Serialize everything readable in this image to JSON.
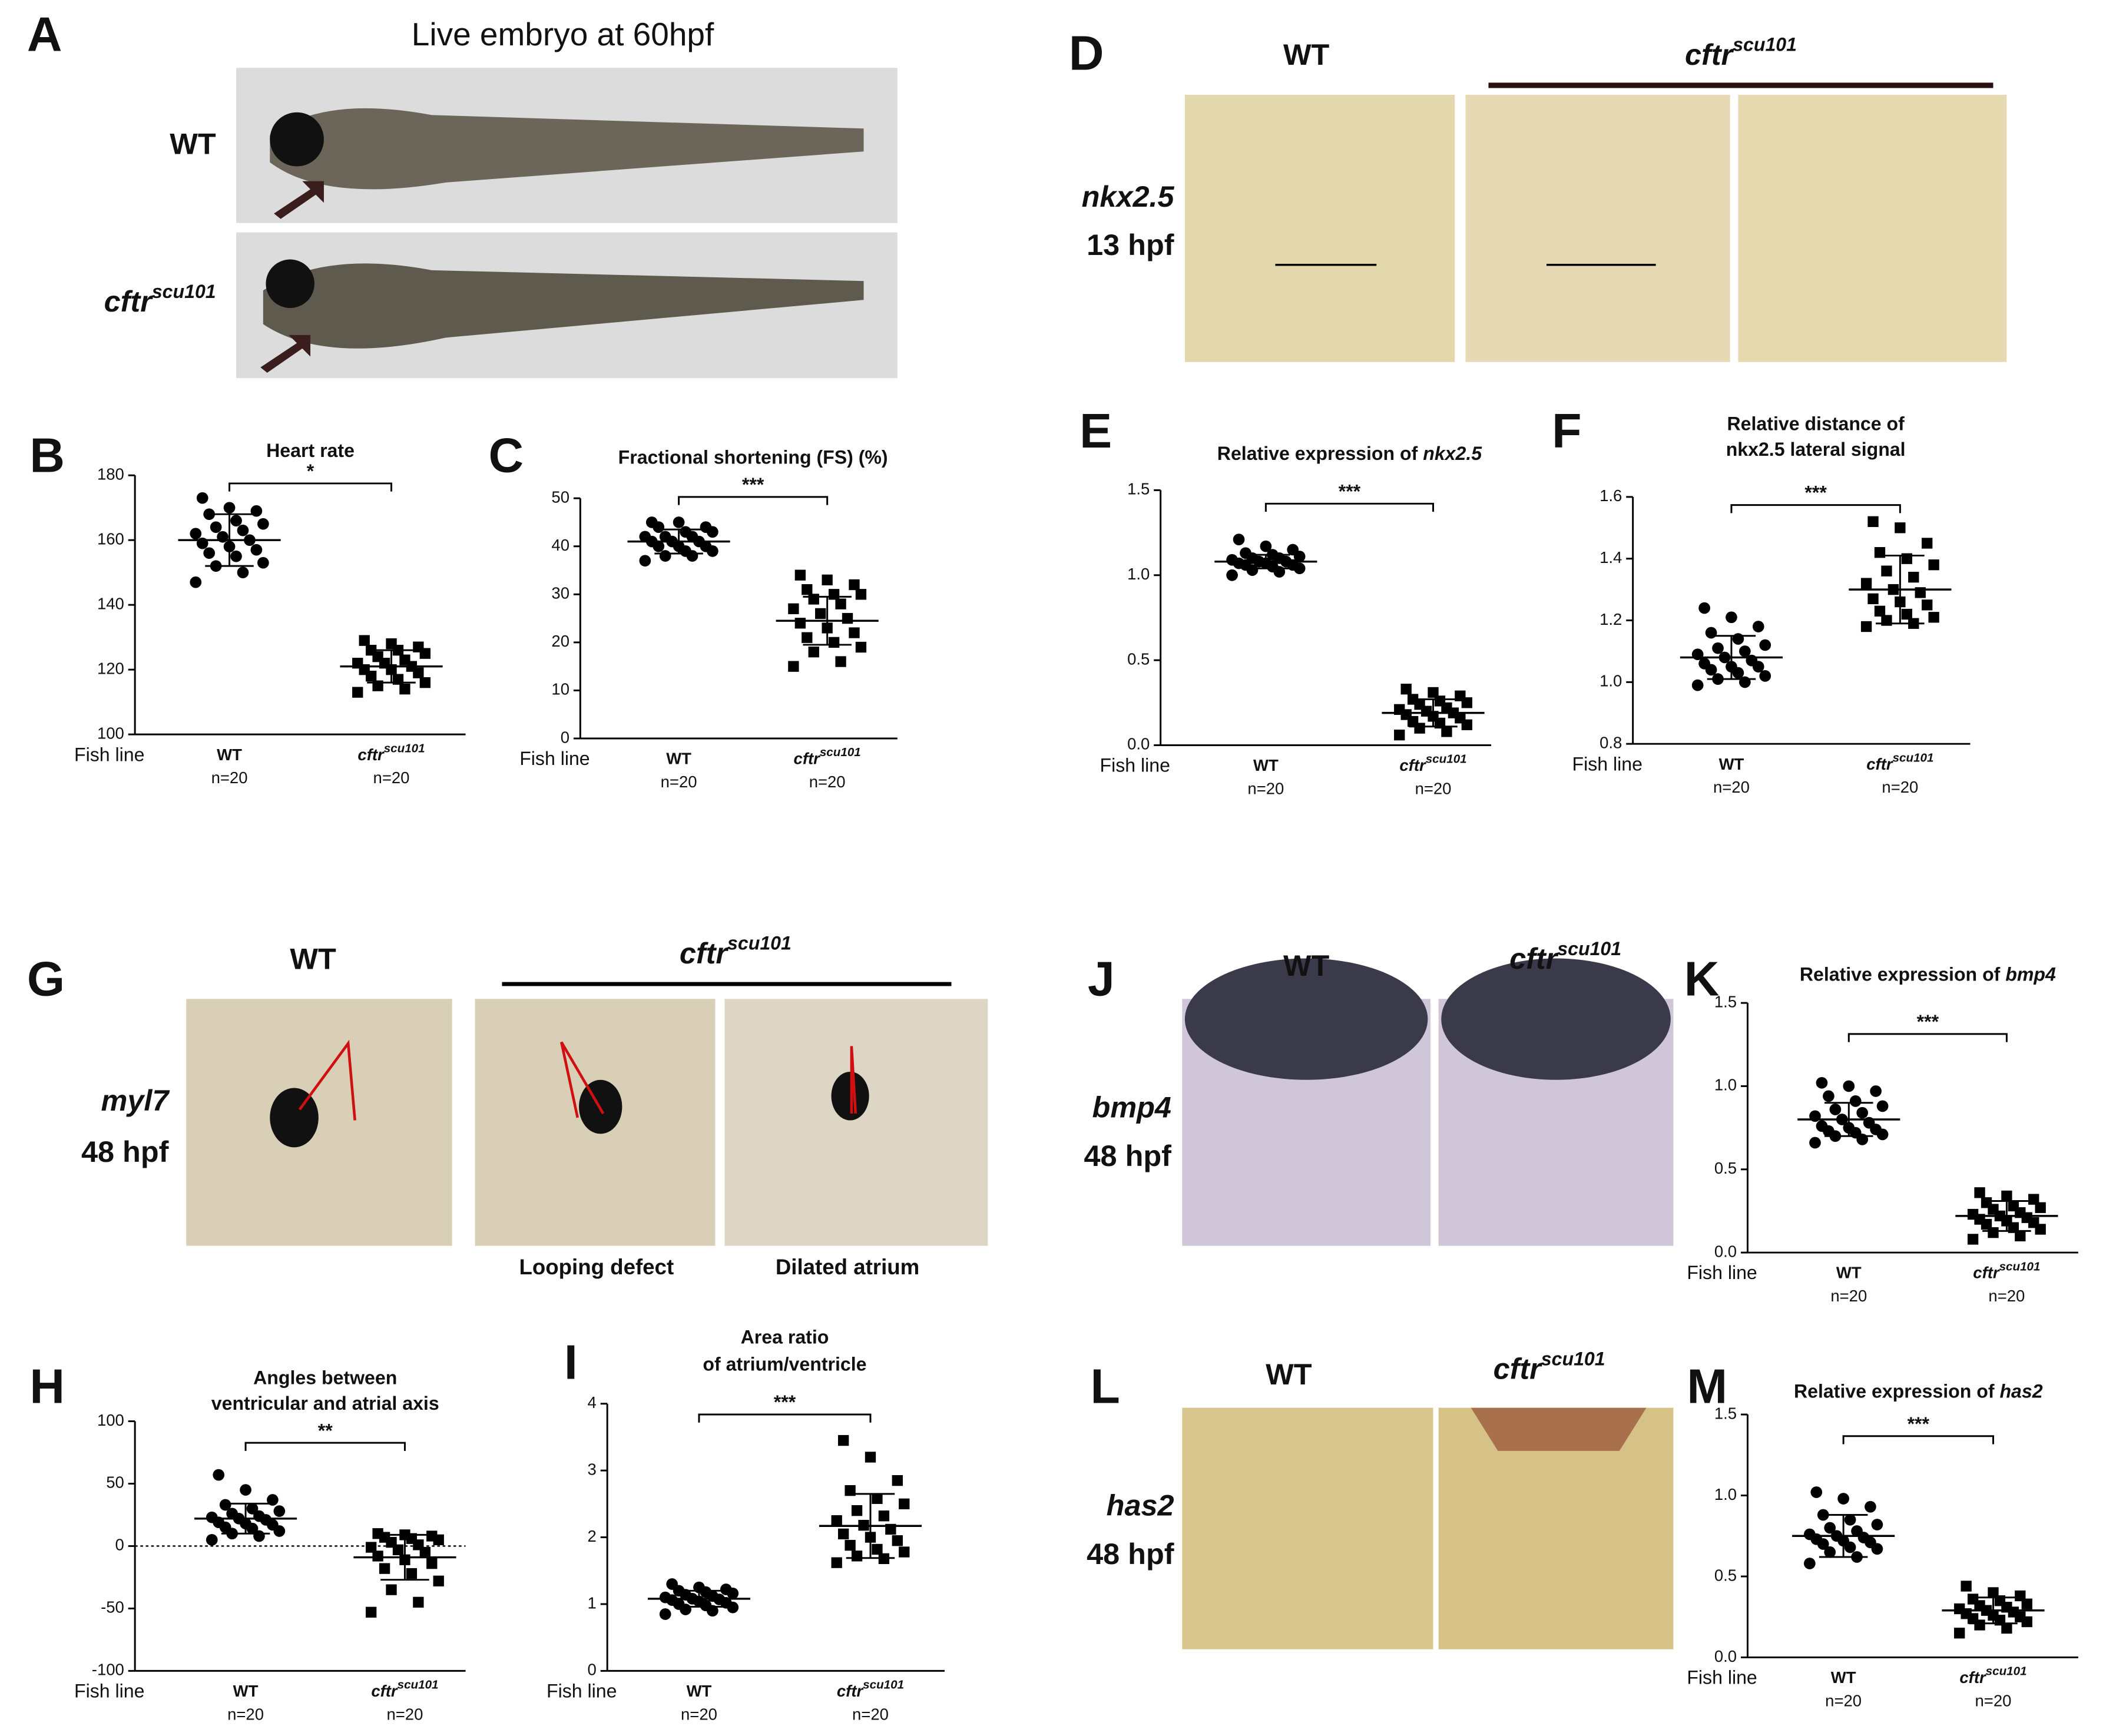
{
  "panel_letters": [
    "A",
    "B",
    "C",
    "D",
    "E",
    "F",
    "G",
    "H",
    "I",
    "J",
    "K",
    "L",
    "M"
  ],
  "panel_A": {
    "title": "Live embryo at 60hpf",
    "rows": [
      {
        "text": "WT"
      },
      {
        "text": "cftr",
        "sup": "scu101"
      }
    ]
  },
  "panel_D": {
    "columns": [
      {
        "text": "WT"
      },
      {
        "text": "cftr",
        "sup": "scu101"
      }
    ],
    "gene": "nkx2.5",
    "stage": "13 hpf"
  },
  "panel_G": {
    "columns": [
      {
        "text": "WT"
      },
      {
        "text": "cftr",
        "sup": "scu101"
      }
    ],
    "gene": "myl7",
    "stage": "48 hpf",
    "captions": [
      "Looping defect",
      "Dilated atrium"
    ]
  },
  "panel_J": {
    "columns": [
      {
        "text": "WT"
      },
      {
        "text": "cftr",
        "sup": "scu101"
      }
    ],
    "gene": "bmp4",
    "stage": "48 hpf"
  },
  "panel_L": {
    "columns": [
      {
        "text": "WT"
      },
      {
        "text": "cftr",
        "sup": "scu101"
      }
    ],
    "gene": "has2",
    "stage": "48 hpf"
  },
  "chart_data": [
    {
      "type": "dotplot",
      "title": "Heart rate",
      "x_label": "Fish line",
      "categories": [
        {
          "text": "WT"
        },
        {
          "text": "cftr",
          "sup": "scu101"
        }
      ],
      "n_labels": [
        "n=20",
        "n=20"
      ],
      "significance": "*",
      "ylim": [
        100,
        180
      ],
      "yticks": [
        100,
        120,
        140,
        160,
        180
      ],
      "groups": [
        {
          "marker": "circle",
          "mean": 160,
          "sd": 8,
          "values": [
            147,
            150,
            152,
            153,
            155,
            156,
            157,
            158,
            159,
            160,
            161,
            162,
            163,
            164,
            165,
            166,
            168,
            169,
            170,
            173
          ]
        },
        {
          "marker": "square",
          "mean": 121,
          "sd": 5,
          "values": [
            113,
            114,
            115,
            116,
            117,
            118,
            119,
            120,
            120,
            121,
            122,
            122,
            123,
            124,
            125,
            126,
            126,
            127,
            128,
            129
          ]
        }
      ]
    },
    {
      "type": "dotplot",
      "title": "Fractional shortening (FS) (%)",
      "x_label": "Fish line",
      "categories": [
        {
          "text": "WT"
        },
        {
          "text": "cftr",
          "sup": "scu101"
        }
      ],
      "n_labels": [
        "n=20",
        "n=20"
      ],
      "significance": "***",
      "ylim": [
        0,
        50
      ],
      "yticks": [
        0,
        10,
        20,
        30,
        40,
        50
      ],
      "groups": [
        {
          "marker": "circle",
          "mean": 41,
          "sd": 2.5,
          "values": [
            37,
            38,
            38,
            39,
            39,
            40,
            40,
            40,
            41,
            41,
            41,
            42,
            42,
            42,
            43,
            43,
            44,
            44,
            45,
            45
          ]
        },
        {
          "marker": "square",
          "mean": 24.5,
          "sd": 5,
          "values": [
            15,
            16,
            18,
            19,
            20,
            21,
            22,
            23,
            24,
            25,
            26,
            27,
            28,
            29,
            30,
            30,
            31,
            32,
            33,
            34
          ]
        }
      ]
    },
    {
      "type": "dotplot",
      "title": "Relative expression of ",
      "title_italic": "nkx2.5",
      "x_label": "Fish line",
      "categories": [
        {
          "text": "WT"
        },
        {
          "text": "cftr",
          "sup": "scu101"
        }
      ],
      "n_labels": [
        "n=20",
        "n=20"
      ],
      "significance": "***",
      "ylim": [
        0,
        1.5
      ],
      "yticks": [
        {
          "value": 0,
          "label": "0.0"
        },
        0.5,
        {
          "value": 1,
          "label": "1.0"
        },
        1.5
      ],
      "groups": [
        {
          "marker": "circle",
          "mean": 1.08,
          "sd": 0.04,
          "values": [
            1.0,
            1.02,
            1.03,
            1.04,
            1.05,
            1.06,
            1.06,
            1.07,
            1.07,
            1.08,
            1.08,
            1.09,
            1.1,
            1.1,
            1.11,
            1.12,
            1.13,
            1.15,
            1.17,
            1.21
          ]
        },
        {
          "marker": "square",
          "mean": 0.19,
          "sd": 0.08,
          "values": [
            0.06,
            0.08,
            0.1,
            0.12,
            0.13,
            0.14,
            0.16,
            0.17,
            0.18,
            0.19,
            0.2,
            0.21,
            0.22,
            0.24,
            0.25,
            0.26,
            0.27,
            0.29,
            0.31,
            0.33
          ]
        }
      ]
    },
    {
      "type": "dotplot",
      "title": [
        "Relative distance of",
        "nkx2.5 lateral signal"
      ],
      "x_label": "Fish line",
      "categories": [
        {
          "text": "WT"
        },
        {
          "text": "cftr",
          "sup": "scu101"
        }
      ],
      "n_labels": [
        "n=20",
        "n=20"
      ],
      "significance": "***",
      "ylim": [
        0.8,
        1.6
      ],
      "yticks": [
        0.8,
        {
          "value": 1,
          "label": "1.0"
        },
        1.2,
        1.4,
        1.6
      ],
      "groups": [
        {
          "marker": "circle",
          "mean": 1.08,
          "sd": 0.07,
          "values": [
            0.99,
            1.0,
            1.01,
            1.02,
            1.03,
            1.04,
            1.05,
            1.05,
            1.06,
            1.07,
            1.08,
            1.09,
            1.1,
            1.11,
            1.12,
            1.14,
            1.16,
            1.18,
            1.21,
            1.24
          ]
        },
        {
          "marker": "square",
          "mean": 1.3,
          "sd": 0.11,
          "values": [
            1.18,
            1.19,
            1.2,
            1.21,
            1.22,
            1.23,
            1.25,
            1.26,
            1.27,
            1.29,
            1.3,
            1.32,
            1.34,
            1.36,
            1.38,
            1.4,
            1.42,
            1.45,
            1.5,
            1.52
          ]
        }
      ]
    },
    {
      "type": "dotplot",
      "title": [
        "Angles between",
        "ventricular and atrial axis"
      ],
      "x_label": "Fish line",
      "categories": [
        {
          "text": "WT"
        },
        {
          "text": "cftr",
          "sup": "scu101"
        }
      ],
      "n_labels": [
        "n=20",
        "n=20"
      ],
      "significance": "**",
      "ylim": [
        -100,
        100
      ],
      "yticks": [
        -100,
        -50,
        0,
        50,
        100
      ],
      "zero_line": true,
      "groups": [
        {
          "marker": "circle",
          "mean": 22,
          "sd": 12,
          "values": [
            5,
            8,
            10,
            12,
            14,
            15,
            17,
            18,
            19,
            21,
            22,
            23,
            24,
            26,
            28,
            30,
            33,
            37,
            45,
            57
          ]
        },
        {
          "marker": "square",
          "mean": -9,
          "sd": 18,
          "values": [
            -53,
            -45,
            -35,
            -28,
            -22,
            -18,
            -14,
            -11,
            -8,
            -5,
            -3,
            -1,
            1,
            3,
            5,
            6,
            7,
            8,
            9,
            10
          ]
        }
      ]
    },
    {
      "type": "dotplot",
      "title": [
        "Area ratio",
        "of atrium/ventricle"
      ],
      "x_label": "Fish line",
      "categories": [
        {
          "text": "WT"
        },
        {
          "text": "cftr",
          "sup": "scu101"
        }
      ],
      "n_labels": [
        "n=20",
        "n=20"
      ],
      "significance": "***",
      "ylim": [
        0,
        4
      ],
      "yticks": [
        0,
        1,
        2,
        3,
        4
      ],
      "groups": [
        {
          "marker": "circle",
          "mean": 1.08,
          "sd": 0.12,
          "values": [
            0.85,
            0.9,
            0.92,
            0.95,
            0.98,
            1.0,
            1.02,
            1.04,
            1.06,
            1.07,
            1.08,
            1.1,
            1.12,
            1.14,
            1.16,
            1.18,
            1.2,
            1.22,
            1.25,
            1.3
          ]
        },
        {
          "marker": "square",
          "mean": 2.17,
          "sd": 0.48,
          "values": [
            1.62,
            1.68,
            1.72,
            1.78,
            1.82,
            1.88,
            1.95,
            2.0,
            2.05,
            2.12,
            2.18,
            2.25,
            2.32,
            2.4,
            2.5,
            2.58,
            2.7,
            2.85,
            3.2,
            3.45
          ]
        }
      ]
    },
    {
      "type": "dotplot",
      "title": "Relative expression of ",
      "title_italic": "bmp4",
      "x_label": "Fish line",
      "categories": [
        {
          "text": "WT"
        },
        {
          "text": "cftr",
          "sup": "scu101"
        }
      ],
      "n_labels": [
        "n=20",
        "n=20"
      ],
      "significance": "***",
      "ylim": [
        0,
        1.5
      ],
      "yticks": [
        {
          "value": 0,
          "label": "0.0"
        },
        0.5,
        {
          "value": 1,
          "label": "1.0"
        },
        1.5
      ],
      "groups": [
        {
          "marker": "circle",
          "mean": 0.8,
          "sd": 0.1,
          "values": [
            0.66,
            0.68,
            0.7,
            0.71,
            0.72,
            0.73,
            0.74,
            0.75,
            0.76,
            0.78,
            0.8,
            0.82,
            0.84,
            0.86,
            0.88,
            0.91,
            0.94,
            0.97,
            1.0,
            1.02
          ]
        },
        {
          "marker": "square",
          "mean": 0.22,
          "sd": 0.09,
          "values": [
            0.08,
            0.1,
            0.12,
            0.14,
            0.15,
            0.17,
            0.18,
            0.19,
            0.2,
            0.21,
            0.22,
            0.23,
            0.24,
            0.26,
            0.27,
            0.28,
            0.3,
            0.32,
            0.34,
            0.36
          ]
        }
      ]
    },
    {
      "type": "dotplot",
      "title": "Relative expression of ",
      "title_italic": "has2",
      "x_label": "Fish line",
      "categories": [
        {
          "text": "WT"
        },
        {
          "text": "cftr",
          "sup": "scu101"
        }
      ],
      "n_labels": [
        "n=20",
        "n=20"
      ],
      "significance": "***",
      "ylim": [
        0,
        1.5
      ],
      "yticks": [
        {
          "value": 0,
          "label": "0.0"
        },
        0.5,
        {
          "value": 1,
          "label": "1.0"
        },
        1.5
      ],
      "groups": [
        {
          "marker": "circle",
          "mean": 0.75,
          "sd": 0.13,
          "values": [
            0.58,
            0.62,
            0.65,
            0.67,
            0.68,
            0.7,
            0.71,
            0.72,
            0.73,
            0.74,
            0.75,
            0.76,
            0.78,
            0.8,
            0.82,
            0.85,
            0.88,
            0.93,
            0.98,
            1.02
          ]
        },
        {
          "marker": "square",
          "mean": 0.29,
          "sd": 0.08,
          "values": [
            0.15,
            0.18,
            0.2,
            0.22,
            0.23,
            0.24,
            0.25,
            0.26,
            0.27,
            0.28,
            0.29,
            0.3,
            0.31,
            0.32,
            0.33,
            0.35,
            0.36,
            0.38,
            0.4,
            0.44
          ]
        }
      ]
    }
  ]
}
